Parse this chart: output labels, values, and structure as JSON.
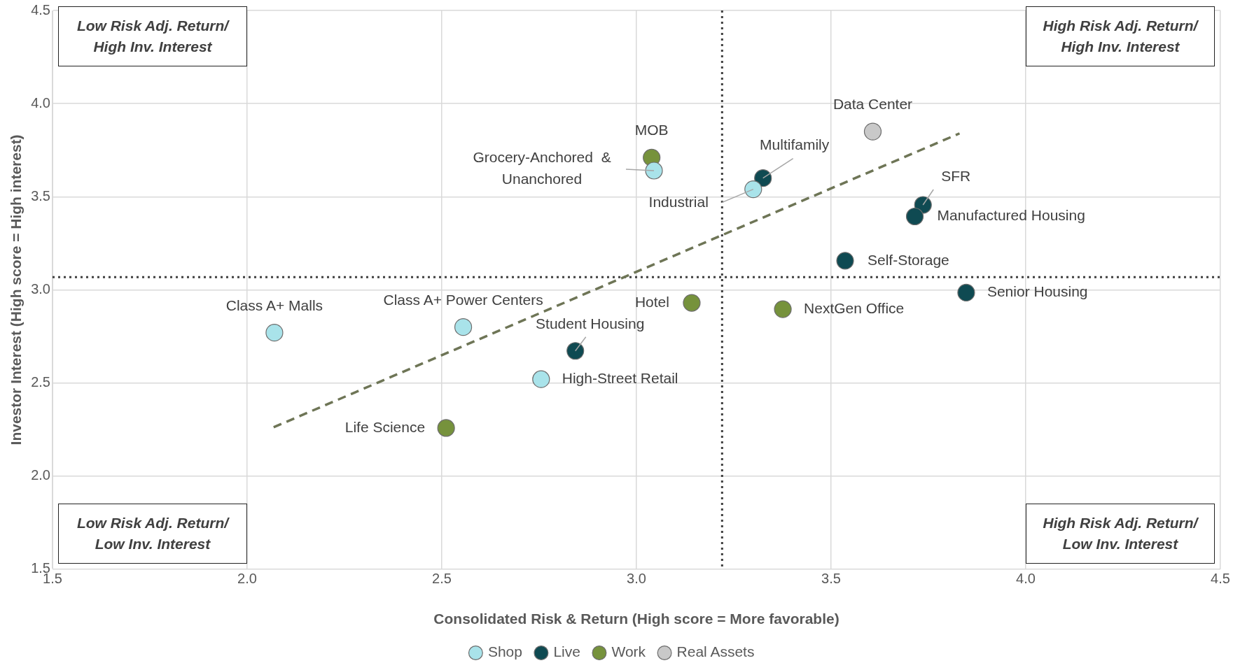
{
  "chart_data": {
    "type": "scatter",
    "xlabel": "Consolidated Risk & Return (High score = More favorable)",
    "ylabel": "Investor Interest (High score = High interest)",
    "xlim": [
      1.5,
      4.5
    ],
    "xticks": [
      {
        "value": 1.5,
        "label": "1.5"
      },
      {
        "value": 2,
        "label": "2.0"
      },
      {
        "value": 2.5,
        "label": "2.5"
      },
      {
        "value": 3,
        "label": "3.0"
      },
      {
        "value": 3.5,
        "label": "3.5"
      },
      {
        "value": 4,
        "label": "4.0"
      },
      {
        "value": 4.5,
        "label": "4.5"
      }
    ],
    "ylim": [
      1.5,
      4.5
    ],
    "yticks": [
      {
        "value": 1.5,
        "label": "1.5"
      },
      {
        "value": 2,
        "label": "2.0"
      },
      {
        "value": 2.5,
        "label": "2.5"
      },
      {
        "value": 3,
        "label": "3.0"
      },
      {
        "value": 3.5,
        "label": "3.5"
      },
      {
        "value": 4,
        "label": "4.0"
      },
      {
        "value": 4.5,
        "label": "4.5"
      }
    ],
    "grid": true,
    "legend": "bottom",
    "marker": "circle",
    "series": [
      {
        "name": "Shop",
        "color": "#a9e3ea",
        "x": [
          2.07,
          2.555,
          2.755,
          3.045,
          3.3
        ],
        "values": [
          2.77,
          2.8,
          2.52,
          3.64,
          3.54
        ]
      },
      {
        "name": "Live",
        "color": "#0f4a52",
        "x": [
          3.325,
          3.736,
          3.715,
          3.536,
          3.847,
          2.843
        ],
        "values": [
          3.6,
          3.456,
          3.394,
          3.156,
          2.985,
          2.672
        ]
      },
      {
        "name": "Work",
        "color": "#76923c",
        "x": [
          3.039,
          3.142,
          3.376,
          2.511
        ],
        "values": [
          3.71,
          2.93,
          2.896,
          2.258
        ]
      },
      {
        "name": "Real Assets",
        "color": "#c9c9c9",
        "x": [
          3.607
        ],
        "values": [
          3.85
        ]
      },
      {
        "type": "line",
        "color": "#6e7556",
        "line_style": "dashed",
        "marker": "none",
        "x": [
          2.068,
          3.83
        ],
        "values": [
          2.262,
          3.84
        ]
      }
    ],
    "ref_lines": [
      {
        "axis": "x",
        "value": 3.22,
        "color": "#404040",
        "line_style": "dotted"
      },
      {
        "axis": "y",
        "value": 3.068,
        "color": "#404040",
        "line_style": "dotted"
      }
    ],
    "annotations": [
      "Low Risk Adj. Return/ High Inv. Interest",
      "High Risk Adj. Return/ High Inv. Interest",
      "Low Risk Adj. Return/ Low Inv. Interest",
      "High Risk Adj. Return/ Low Inv. Interest",
      {
        "text": "Class A+ Malls",
        "x": 2.07,
        "y": 2.77
      },
      {
        "text": "Class A+ Power Centers",
        "x": 2.555,
        "y": 2.8
      },
      {
        "text": "High-Street Retail",
        "x": 2.755,
        "y": 2.52
      },
      {
        "text": "Grocery-Anchored  &\nUnanchored",
        "x": 3.045,
        "y": 3.64
      },
      {
        "text": "Industrial",
        "x": 3.3,
        "y": 3.54
      },
      {
        "text": "Multifamily",
        "x": 3.325,
        "y": 3.6
      },
      {
        "text": "SFR",
        "x": 3.736,
        "y": 3.456
      },
      {
        "text": "Manufactured Housing",
        "x": 3.715,
        "y": 3.394
      },
      {
        "text": "Self-Storage",
        "x": 3.536,
        "y": 3.156
      },
      {
        "text": "Senior Housing",
        "x": 3.847,
        "y": 2.985
      },
      {
        "text": "Student Housing",
        "x": 2.843,
        "y": 2.672
      },
      {
        "text": "MOB",
        "x": 3.039,
        "y": 3.71
      },
      {
        "text": "Hotel",
        "x": 3.142,
        "y": 2.93
      },
      {
        "text": "NextGen Office",
        "x": 3.376,
        "y": 2.896
      },
      {
        "text": "Life Science",
        "x": 2.511,
        "y": 2.258
      },
      {
        "text": "Data Center",
        "x": 3.607,
        "y": 3.85
      }
    ]
  }
}
